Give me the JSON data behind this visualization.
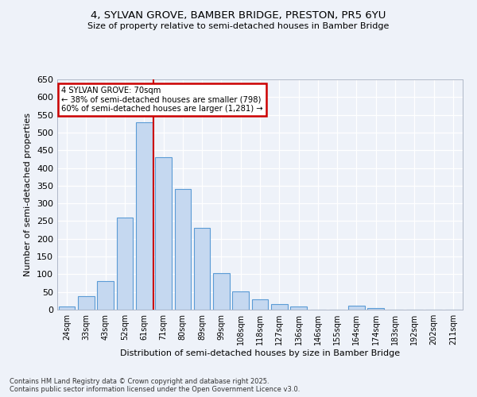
{
  "title1": "4, SYLVAN GROVE, BAMBER BRIDGE, PRESTON, PR5 6YU",
  "title2": "Size of property relative to semi-detached houses in Bamber Bridge",
  "xlabel": "Distribution of semi-detached houses by size in Bamber Bridge",
  "ylabel": "Number of semi-detached properties",
  "categories": [
    "24sqm",
    "33sqm",
    "43sqm",
    "52sqm",
    "61sqm",
    "71sqm",
    "80sqm",
    "89sqm",
    "99sqm",
    "108sqm",
    "118sqm",
    "127sqm",
    "136sqm",
    "146sqm",
    "155sqm",
    "164sqm",
    "174sqm",
    "183sqm",
    "192sqm",
    "202sqm",
    "211sqm"
  ],
  "values": [
    8,
    38,
    80,
    260,
    530,
    430,
    340,
    230,
    103,
    52,
    30,
    15,
    10,
    0,
    0,
    12,
    5,
    0,
    0,
    0,
    0
  ],
  "bar_color": "#c5d8f0",
  "bar_edge_color": "#5b9bd5",
  "vline_color": "#cc0000",
  "annotation_title": "4 SYLVAN GROVE: 70sqm",
  "annotation_line1": "← 38% of semi-detached houses are smaller (798)",
  "annotation_line2": "60% of semi-detached houses are larger (1,281) →",
  "annotation_box_color": "#cc0000",
  "ylim": [
    0,
    650
  ],
  "yticks": [
    0,
    50,
    100,
    150,
    200,
    250,
    300,
    350,
    400,
    450,
    500,
    550,
    600,
    650
  ],
  "background_color": "#eef2f9",
  "grid_color": "#ffffff",
  "footer1": "Contains HM Land Registry data © Crown copyright and database right 2025.",
  "footer2": "Contains public sector information licensed under the Open Government Licence v3.0."
}
